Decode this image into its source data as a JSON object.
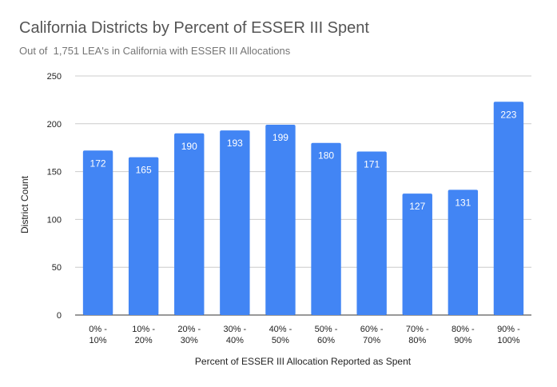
{
  "chart_data": {
    "type": "bar",
    "title": "California Districts by Percent of ESSER III Spent",
    "subtitle": "Out of  1,751 LEA's in California with ESSER III Allocations",
    "xlabel": "Percent of ESSER III Allocation Reported as Spent",
    "ylabel": "District Count",
    "categories": [
      [
        "0% -",
        "10%"
      ],
      [
        "10% -",
        "20%"
      ],
      [
        "20% -",
        "30%"
      ],
      [
        "30% -",
        "40%"
      ],
      [
        "40% -",
        "50%"
      ],
      [
        "50% -",
        "60%"
      ],
      [
        "60% -",
        "70%"
      ],
      [
        "70% -",
        "80%"
      ],
      [
        "80% -",
        "90%"
      ],
      [
        "90% -",
        "100%"
      ]
    ],
    "values": [
      172,
      165,
      190,
      193,
      199,
      180,
      171,
      127,
      131,
      223
    ],
    "ylim": [
      0,
      250
    ],
    "yticks": [
      0,
      50,
      100,
      150,
      200,
      250
    ],
    "grid": true,
    "bar_color": "#4285f4",
    "grid_color": "#cccccc",
    "data_labels": true
  }
}
